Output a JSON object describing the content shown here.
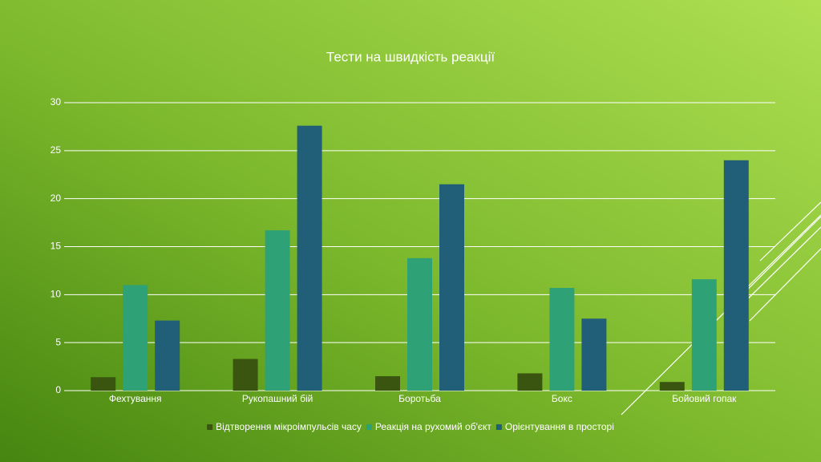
{
  "chart_data": {
    "type": "bar",
    "title": "Тести на швидкість реакції",
    "categories": [
      "Фехтування",
      "Рукопашний бій",
      "Боротьба",
      "Бокс",
      "Бойовий гопак"
    ],
    "series": [
      {
        "name": "Відтворення мікроімпульсів часу",
        "color": "#3a5510",
        "values": [
          1.4,
          3.3,
          1.5,
          1.8,
          0.9
        ]
      },
      {
        "name": "Реакція на рухомий об'єкт",
        "color": "#2ea276",
        "values": [
          11.0,
          16.7,
          13.8,
          10.7,
          11.6
        ]
      },
      {
        "name": "Орієнтування в просторі",
        "color": "#215e77",
        "values": [
          7.3,
          27.6,
          21.5,
          7.5,
          24.0
        ]
      }
    ],
    "ylim": [
      0,
      30
    ],
    "yticks": [
      0,
      5,
      10,
      15,
      20,
      25,
      30
    ],
    "grid": true,
    "legend": "bottom"
  }
}
